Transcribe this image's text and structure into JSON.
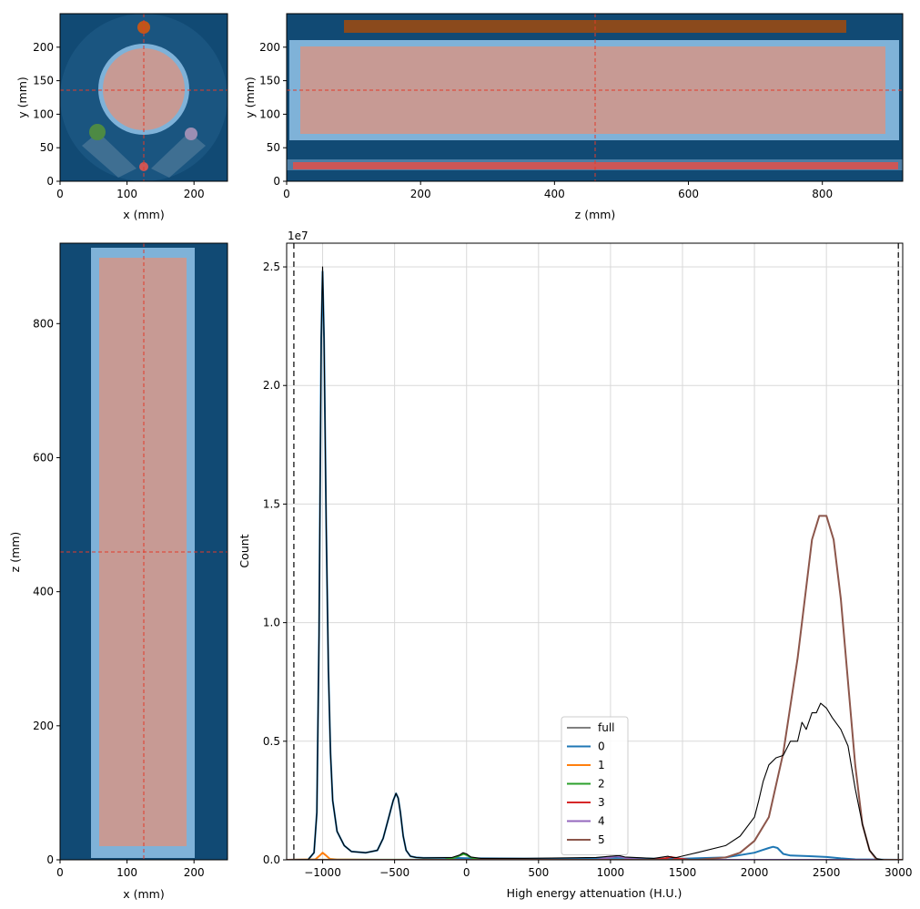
{
  "colors": {
    "background": "#114a74",
    "sample": "#c79a94",
    "tube": "#7fb2d8",
    "crosshair": "#e23a2a",
    "series": [
      "#1f77b4",
      "#ff7f0e",
      "#2ca02c",
      "#d62728",
      "#9467bd",
      "#8c564b"
    ],
    "full": "#000000",
    "marker_orange": "#c0561a",
    "marker_green": "#4d8a44",
    "marker_purple": "#9c8eb3",
    "marker_red": "#cd5656"
  },
  "views": {
    "xy": {
      "xlabel": "x (mm)",
      "ylabel": "y (mm)",
      "xticks": [
        "0",
        "100",
        "200"
      ],
      "yticks": [
        "0",
        "50",
        "100",
        "150",
        "200"
      ],
      "xlim": [
        0,
        250
      ],
      "ylim": [
        250,
        0
      ],
      "crosshair": {
        "x": 125,
        "y": 115
      }
    },
    "zy": {
      "xlabel": "z (mm)",
      "ylabel": "y (mm)",
      "xticks": [
        "0",
        "200",
        "400",
        "600",
        "800"
      ],
      "yticks": [
        "0",
        "50",
        "100",
        "150",
        "200"
      ],
      "xlim": [
        0,
        920
      ],
      "ylim": [
        250,
        0
      ],
      "crosshair": {
        "z": 460,
        "y": 115
      }
    },
    "xz": {
      "xlabel": "x (mm)",
      "ylabel": "z (mm)",
      "xticks": [
        "0",
        "100",
        "200"
      ],
      "yticks": [
        "0",
        "200",
        "400",
        "600",
        "800"
      ],
      "xlim": [
        0,
        250
      ],
      "ylim": [
        920,
        0
      ],
      "crosshair": {
        "x": 125,
        "z": 460
      }
    }
  },
  "chart_data": {
    "type": "line",
    "xlabel": "High energy attenuation (H.U.)",
    "ylabel": "Count",
    "offset_label": "1e7",
    "xlim": [
      -1250,
      3030
    ],
    "ylim": [
      0,
      2.6
    ],
    "xticks": [
      -1000,
      -500,
      0,
      500,
      1000,
      1500,
      2000,
      2500,
      3000
    ],
    "xtick_labels": [
      "−1000",
      "−500",
      "0",
      "500",
      "1000",
      "1500",
      "2000",
      "2500",
      "3000"
    ],
    "yticks": [
      0,
      0.5,
      1.0,
      1.5,
      2.0,
      2.5
    ],
    "ytick_labels": [
      "0.0",
      "0.5",
      "1.0",
      "1.5",
      "2.0",
      "2.5"
    ],
    "grid": true,
    "legend_position": "lower-center",
    "vlines": [
      -1200,
      3000
    ],
    "series": [
      {
        "name": "full",
        "x": [
          -1250,
          -1100,
          -1060,
          -1040,
          -1025,
          -1010,
          -1000,
          -990,
          -975,
          -960,
          -945,
          -930,
          -900,
          -850,
          -800,
          -700,
          -620,
          -580,
          -540,
          -510,
          -490,
          -475,
          -460,
          -440,
          -420,
          -390,
          -350,
          -300,
          -100,
          -50,
          -25,
          0,
          30,
          100,
          400,
          900,
          1000,
          1060,
          1100,
          1300,
          1400,
          1430,
          1460,
          1600,
          1800,
          1900,
          2000,
          2030,
          2060,
          2100,
          2150,
          2200,
          2250,
          2300,
          2330,
          2360,
          2400,
          2430,
          2460,
          2500,
          2540,
          2600,
          2650,
          2700,
          2750,
          2800,
          2850,
          2900,
          3030
        ],
        "y": [
          0,
          0.001,
          0.03,
          0.2,
          0.95,
          2.2,
          2.5,
          2.2,
          1.4,
          0.8,
          0.45,
          0.25,
          0.12,
          0.06,
          0.035,
          0.03,
          0.04,
          0.09,
          0.18,
          0.25,
          0.28,
          0.26,
          0.2,
          0.1,
          0.04,
          0.015,
          0.01,
          0.008,
          0.01,
          0.02,
          0.03,
          0.025,
          0.012,
          0.006,
          0.006,
          0.01,
          0.015,
          0.018,
          0.012,
          0.006,
          0.015,
          0.01,
          0.01,
          0.03,
          0.06,
          0.1,
          0.18,
          0.25,
          0.33,
          0.4,
          0.43,
          0.44,
          0.5,
          0.5,
          0.58,
          0.55,
          0.62,
          0.62,
          0.66,
          0.64,
          0.6,
          0.55,
          0.48,
          0.3,
          0.15,
          0.04,
          0.005,
          0,
          0
        ]
      },
      {
        "name": "0",
        "x": [
          -1250,
          -1100,
          -1060,
          -1040,
          -1025,
          -1010,
          -1000,
          -990,
          -975,
          -960,
          -945,
          -930,
          -900,
          -850,
          -800,
          -700,
          -620,
          -580,
          -540,
          -510,
          -490,
          -475,
          -460,
          -440,
          -420,
          -390,
          -350,
          -300,
          -100,
          0,
          100,
          500,
          900,
          1000,
          1050,
          1100,
          1300,
          1500,
          1800,
          1900,
          2000,
          2050,
          2100,
          2130,
          2160,
          2200,
          2250,
          2400,
          2500,
          2600,
          2700,
          3030
        ],
        "y": [
          0,
          0.001,
          0.03,
          0.2,
          0.95,
          2.2,
          2.48,
          2.2,
          1.4,
          0.8,
          0.45,
          0.25,
          0.12,
          0.06,
          0.035,
          0.03,
          0.04,
          0.09,
          0.18,
          0.25,
          0.28,
          0.26,
          0.2,
          0.1,
          0.04,
          0.015,
          0.01,
          0.008,
          0.008,
          0.007,
          0.006,
          0.005,
          0.006,
          0.008,
          0.009,
          0.008,
          0.005,
          0.005,
          0.01,
          0.02,
          0.03,
          0.04,
          0.05,
          0.055,
          0.05,
          0.025,
          0.018,
          0.015,
          0.012,
          0.006,
          0.002,
          0
        ]
      },
      {
        "name": "1",
        "x": [
          -1250,
          -1050,
          -1020,
          -1000,
          -980,
          -950,
          -900,
          -600,
          3030
        ],
        "y": [
          0,
          0.002,
          0.018,
          0.03,
          0.02,
          0.004,
          0.001,
          0,
          0
        ]
      },
      {
        "name": "2",
        "x": [
          -1250,
          -150,
          -80,
          -40,
          -20,
          0,
          30,
          80,
          150,
          3030
        ],
        "y": [
          0,
          0.001,
          0.01,
          0.02,
          0.025,
          0.02,
          0.01,
          0.002,
          0,
          0
        ]
      },
      {
        "name": "3",
        "x": [
          -1250,
          1300,
          1380,
          1420,
          1460,
          1550,
          3030
        ],
        "y": [
          0,
          0,
          0.006,
          0.012,
          0.006,
          0,
          0
        ]
      },
      {
        "name": "4",
        "x": [
          -1250,
          900,
          980,
          1040,
          1080,
          1140,
          1250,
          3030
        ],
        "y": [
          0,
          0,
          0.008,
          0.015,
          0.012,
          0.004,
          0,
          0
        ]
      },
      {
        "name": "5",
        "x": [
          -1250,
          1600,
          1800,
          1900,
          2000,
          2100,
          2200,
          2300,
          2360,
          2400,
          2450,
          2500,
          2550,
          2600,
          2650,
          2700,
          2750,
          2800,
          2850,
          3030
        ],
        "y": [
          0,
          0,
          0.01,
          0.03,
          0.08,
          0.18,
          0.45,
          0.85,
          1.15,
          1.35,
          1.45,
          1.45,
          1.35,
          1.1,
          0.75,
          0.4,
          0.15,
          0.04,
          0,
          0
        ]
      }
    ]
  }
}
